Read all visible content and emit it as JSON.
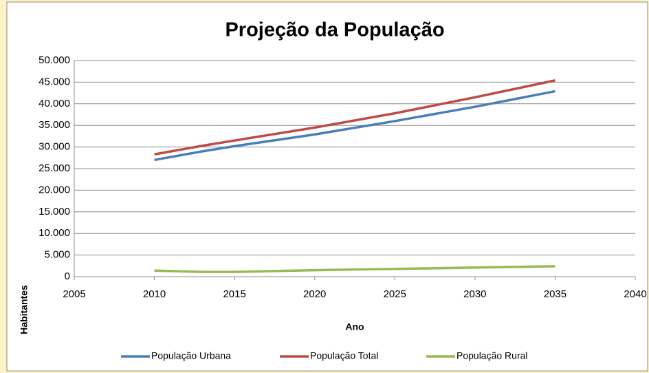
{
  "chart_data": {
    "type": "line",
    "title": "Projeção da População",
    "x_label": "Ano",
    "y_label": "Habitantes",
    "x": [
      2010,
      2013,
      2015,
      2020,
      2025,
      2030,
      2035
    ],
    "series": [
      {
        "name": "População Urbana",
        "color": "#4a7ebb",
        "values": [
          27000,
          29000,
          30200,
          32900,
          36000,
          39300,
          42900
        ]
      },
      {
        "name": "População Total",
        "color": "#be4b48",
        "values": [
          28300,
          30300,
          31500,
          34500,
          37800,
          41500,
          45400
        ]
      },
      {
        "name": "População Rural",
        "color": "#98b954",
        "values": [
          1400,
          1100,
          1100,
          1500,
          1800,
          2100,
          2400
        ]
      }
    ],
    "xlim": [
      2005,
      2040
    ],
    "xticks": [
      2005,
      2010,
      2015,
      2020,
      2025,
      2030,
      2035,
      2040
    ],
    "ylim": [
      0,
      50000
    ],
    "yticks": [
      0,
      {
        "value": 5000,
        "label": "5.000"
      },
      {
        "value": 10000,
        "label": "10.000"
      },
      {
        "value": 15000,
        "label": "15.000"
      },
      {
        "value": 20000,
        "label": "20.000"
      },
      {
        "value": 25000,
        "label": "25.000"
      },
      {
        "value": 30000,
        "label": "30.000"
      },
      {
        "value": 35000,
        "label": "35.000"
      },
      {
        "value": 40000,
        "label": "40.000"
      },
      {
        "value": 45000,
        "label": "45.000"
      },
      {
        "value": 50000,
        "label": "50.000"
      }
    ],
    "grid": true,
    "legend": "bottom"
  }
}
